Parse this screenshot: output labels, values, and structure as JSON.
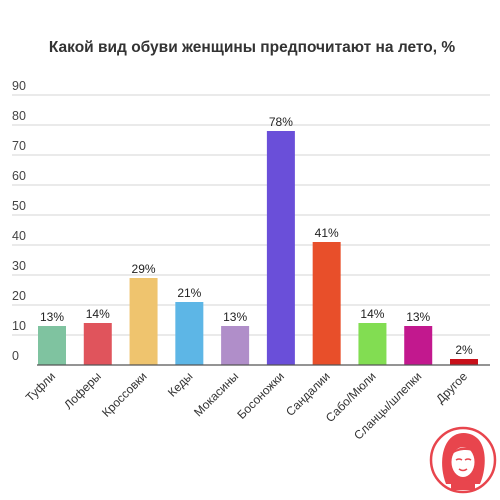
{
  "chart_data": {
    "type": "bar",
    "title": "Какой вид обуви женщины предпочитают на лето, %",
    "xlabel": "",
    "ylabel": "",
    "ylim": [
      0,
      90
    ],
    "yticks": [
      "0",
      "10",
      "20",
      "30",
      "40",
      "50",
      "60",
      "70",
      "80",
      "90"
    ],
    "grid": true,
    "categories": [
      "Туфли",
      "Лоферы",
      "Кроссовки",
      "Кеды",
      "Мокасины",
      "Босоножки",
      "Сандалии",
      "Сабо/Мюли",
      "Сланцы/шлепки",
      "Другое"
    ],
    "values": [
      13,
      14,
      29,
      21,
      13,
      78,
      41,
      14,
      13,
      2
    ],
    "data_labels": [
      "13%",
      "14%",
      "29%",
      "21%",
      "13%",
      "78%",
      "41%",
      "14%",
      "13%",
      "2%"
    ],
    "colors": [
      "#7fc3a0",
      "#e0545c",
      "#efc46e",
      "#5db6e6",
      "#b08ec9",
      "#6a4fd9",
      "#e84f2a",
      "#82dd52",
      "#c2188e",
      "#c8101a"
    ]
  },
  "logo": {
    "icon": "woman-face-logo",
    "color": "#e8454d"
  }
}
